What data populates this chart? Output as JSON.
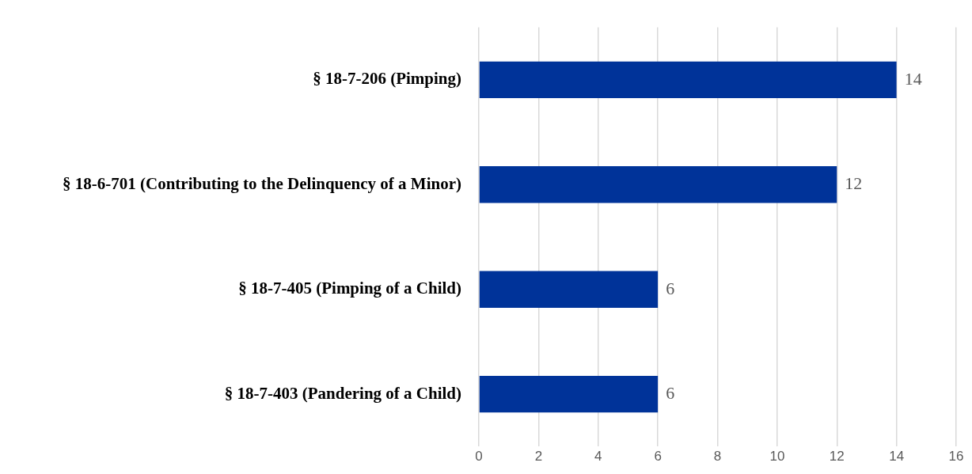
{
  "chart_data": {
    "type": "bar",
    "orientation": "horizontal",
    "categories": [
      "§ 18-7-206 (Pimping)",
      "§ 18-6-701 (Contributing to the Delinquency of a Minor)",
      "§ 18-7-405 (Pimping of a Child)",
      "§ 18-7-403 (Pandering of a Child)"
    ],
    "values": [
      14,
      12,
      6,
      6
    ],
    "color": "#003399",
    "xlim": [
      0,
      16
    ],
    "xticks": [
      0,
      2,
      4,
      6,
      8,
      10,
      12,
      14,
      16
    ],
    "grid": "x",
    "legend": false,
    "data_labels": true
  }
}
